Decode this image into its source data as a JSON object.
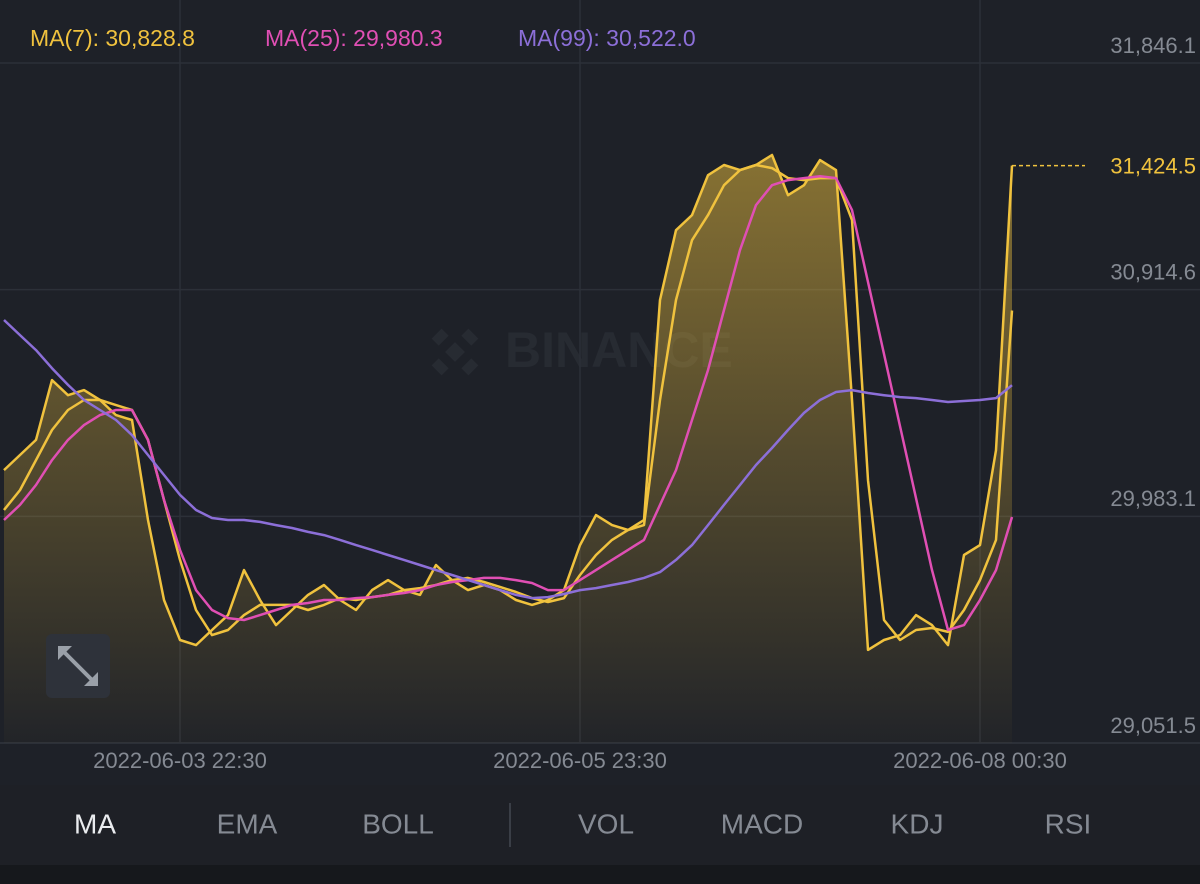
{
  "chart_data": {
    "type": "line",
    "watermark": "BINANCE",
    "categories": [
      null,
      null,
      null,
      null,
      null,
      null,
      null,
      null,
      null,
      null,
      null,
      "2022-06-03 22:30",
      null,
      null,
      null,
      null,
      null,
      null,
      null,
      null,
      null,
      null,
      null,
      null,
      null,
      null,
      null,
      null,
      null,
      null,
      null,
      null,
      null,
      null,
      null,
      null,
      "2022-06-05 23:30",
      null,
      null,
      null,
      null,
      null,
      null,
      null,
      null,
      null,
      null,
      null,
      null,
      null,
      null,
      null,
      null,
      null,
      null,
      null,
      null,
      null,
      null,
      null,
      null,
      "2022-06-08 00:30",
      null,
      null
    ],
    "series": [
      {
        "color": "#f0c23e",
        "area": true,
        "values": [
          30173,
          30235,
          30297,
          30543,
          30481,
          30502,
          30461,
          30399,
          30379,
          29968,
          29639,
          29475,
          29454,
          29516,
          29577,
          29762,
          29639,
          29536,
          29598,
          29660,
          29701,
          29639,
          29598,
          29680,
          29721,
          29680,
          29660,
          29783,
          29721,
          29680,
          29701,
          29680,
          29639,
          29619,
          29639,
          29680,
          29865,
          29988,
          29947,
          29927,
          29968,
          30872,
          31159,
          31221,
          31385,
          31427,
          31406,
          31427,
          31468,
          31303,
          31344,
          31447,
          31406,
          30461,
          29434,
          29475,
          29495,
          29577,
          29536,
          29454,
          29824,
          29865,
          30255,
          31424.5
        ],
        "value_labels": [
          null,
          null,
          null,
          null,
          null,
          null,
          null,
          null,
          null,
          null,
          null,
          null,
          null,
          null,
          null,
          null,
          null,
          null,
          null,
          null,
          null,
          null,
          null,
          null,
          null,
          null,
          null,
          null,
          null,
          null,
          null,
          null,
          null,
          null,
          null,
          null,
          null,
          null,
          null,
          null,
          null,
          null,
          null,
          null,
          null,
          null,
          null,
          null,
          null,
          null,
          null,
          null,
          null,
          null,
          null,
          null,
          null,
          null,
          null,
          null,
          null,
          null,
          null,
          "31,424.5"
        ]
      },
      {
        "name": "MA(7): 30,828.8",
        "color": "#f0c23e",
        "values": [
          30009,
          30091,
          30214,
          30338,
          30420,
          30461,
          30461,
          30440,
          30420,
          30297,
          30050,
          29804,
          29598,
          29495,
          29516,
          29577,
          29619,
          29619,
          29619,
          29598,
          29619,
          29647,
          29639,
          29651,
          29660,
          29680,
          29688,
          29701,
          29721,
          29730,
          29713,
          29693,
          29672,
          29647,
          29631,
          29647,
          29742,
          29824,
          29886,
          29927,
          29947,
          30461,
          30872,
          31118,
          31221,
          31344,
          31406,
          31427,
          31414,
          31373,
          31365,
          31373,
          31373,
          31201,
          30132,
          29557,
          29475,
          29516,
          29524,
          29508,
          29598,
          29721,
          29886,
          30828.8
        ]
      },
      {
        "name": "MA(25): 29,980.3",
        "color": "#e04fb4",
        "values": [
          29968,
          30030,
          30112,
          30214,
          30297,
          30358,
          30399,
          30420,
          30420,
          30297,
          30050,
          29845,
          29680,
          29598,
          29565,
          29557,
          29577,
          29598,
          29619,
          29627,
          29639,
          29639,
          29647,
          29651,
          29660,
          29668,
          29680,
          29701,
          29713,
          29721,
          29730,
          29730,
          29721,
          29709,
          29680,
          29680,
          29721,
          29762,
          29804,
          29845,
          29886,
          30030,
          30173,
          30379,
          30584,
          30831,
          31077,
          31262,
          31344,
          31365,
          31373,
          31381,
          31373,
          31242,
          30946,
          30650,
          30354,
          30058,
          29762,
          29516,
          29536,
          29639,
          29762,
          29980.3
        ]
      },
      {
        "name": "MA(99): 30,522.0",
        "color": "#8c6fd8",
        "values": [
          30790,
          30728,
          30666,
          30592,
          30523,
          30461,
          30420,
          30379,
          30317,
          30235,
          30153,
          30071,
          30009,
          29976,
          29968,
          29968,
          29960,
          29947,
          29935,
          29919,
          29906,
          29886,
          29865,
          29845,
          29824,
          29804,
          29783,
          29762,
          29742,
          29721,
          29701,
          29680,
          29660,
          29647,
          29651,
          29664,
          29680,
          29688,
          29701,
          29713,
          29730,
          29754,
          29804,
          29865,
          29947,
          30030,
          30112,
          30194,
          30264,
          30338,
          30408,
          30461,
          30494,
          30502,
          30490,
          30481,
          30473,
          30469,
          30461,
          30453,
          30457,
          30461,
          30469,
          30522.0
        ]
      }
    ],
    "ylim": [
      29051.5,
      31846.1
    ],
    "yticks": [
      {
        "value": 29051.5,
        "label": "29,051.5"
      },
      {
        "value": 29983.1,
        "label": "29,983.1"
      },
      {
        "value": 30914.6,
        "label": "30,914.6"
      },
      {
        "value": 31846.1,
        "label": "31,846.1"
      }
    ],
    "grid": true
  },
  "indicator_tabs": {
    "main": [
      "MA",
      "EMA",
      "BOLL"
    ],
    "sub": [
      "VOL",
      "MACD",
      "KDJ",
      "RSI"
    ],
    "active_main": 0
  }
}
